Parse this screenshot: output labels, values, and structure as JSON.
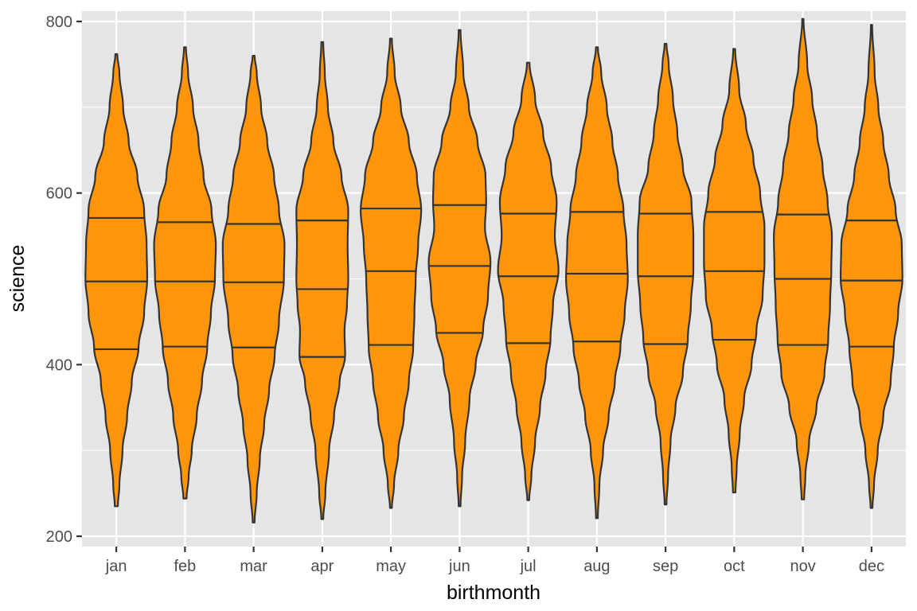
{
  "chart_data": {
    "type": "violin",
    "xlabel": "birthmonth",
    "ylabel": "science",
    "ylim": [
      188,
      812
    ],
    "y_ticks": [
      200,
      400,
      600,
      800
    ],
    "grid": true,
    "fill_color": "#FF950A",
    "outline_color": "#333333",
    "panel_color": "#E5E5E5",
    "categories": [
      "jan",
      "feb",
      "mar",
      "apr",
      "may",
      "jun",
      "jul",
      "aug",
      "sep",
      "oct",
      "nov",
      "dec"
    ],
    "violins": [
      {
        "category": "jan",
        "min": 235,
        "max": 762,
        "q1": 418,
        "median": 497,
        "q3": 571,
        "density": [
          [
            235,
            0.05
          ],
          [
            260,
            0.1
          ],
          [
            300,
            0.2
          ],
          [
            340,
            0.35
          ],
          [
            380,
            0.5
          ],
          [
            420,
            0.72
          ],
          [
            460,
            0.9
          ],
          [
            500,
            1.0
          ],
          [
            540,
            0.98
          ],
          [
            580,
            0.9
          ],
          [
            620,
            0.68
          ],
          [
            660,
            0.4
          ],
          [
            700,
            0.22
          ],
          [
            740,
            0.1
          ],
          [
            762,
            0.03
          ]
        ]
      },
      {
        "category": "feb",
        "min": 244,
        "max": 770,
        "q1": 421,
        "median": 497,
        "q3": 566,
        "density": [
          [
            244,
            0.05
          ],
          [
            270,
            0.12
          ],
          [
            300,
            0.22
          ],
          [
            340,
            0.38
          ],
          [
            380,
            0.55
          ],
          [
            420,
            0.72
          ],
          [
            460,
            0.84
          ],
          [
            500,
            0.97
          ],
          [
            540,
            1.0
          ],
          [
            580,
            0.86
          ],
          [
            620,
            0.6
          ],
          [
            660,
            0.44
          ],
          [
            700,
            0.26
          ],
          [
            740,
            0.1
          ],
          [
            770,
            0.03
          ]
        ]
      },
      {
        "category": "mar",
        "min": 216,
        "max": 760,
        "q1": 420,
        "median": 496,
        "q3": 564,
        "density": [
          [
            216,
            0.03
          ],
          [
            250,
            0.1
          ],
          [
            290,
            0.2
          ],
          [
            330,
            0.34
          ],
          [
            370,
            0.5
          ],
          [
            410,
            0.68
          ],
          [
            450,
            0.82
          ],
          [
            500,
            0.98
          ],
          [
            540,
            1.0
          ],
          [
            580,
            0.82
          ],
          [
            620,
            0.66
          ],
          [
            660,
            0.44
          ],
          [
            700,
            0.24
          ],
          [
            740,
            0.1
          ],
          [
            760,
            0.03
          ]
        ]
      },
      {
        "category": "apr",
        "min": 220,
        "max": 776,
        "q1": 409,
        "median": 488,
        "q3": 568,
        "density": [
          [
            220,
            0.03
          ],
          [
            250,
            0.1
          ],
          [
            300,
            0.22
          ],
          [
            340,
            0.38
          ],
          [
            380,
            0.56
          ],
          [
            410,
            0.74
          ],
          [
            440,
            0.72
          ],
          [
            470,
            0.8
          ],
          [
            500,
            0.84
          ],
          [
            540,
            0.82
          ],
          [
            580,
            0.84
          ],
          [
            620,
            0.62
          ],
          [
            660,
            0.36
          ],
          [
            700,
            0.18
          ],
          [
            740,
            0.08
          ],
          [
            776,
            0.03
          ]
        ]
      },
      {
        "category": "may",
        "min": 233,
        "max": 780,
        "q1": 423,
        "median": 509,
        "q3": 582,
        "density": [
          [
            233,
            0.03
          ],
          [
            260,
            0.1
          ],
          [
            300,
            0.24
          ],
          [
            340,
            0.42
          ],
          [
            380,
            0.58
          ],
          [
            420,
            0.72
          ],
          [
            460,
            0.76
          ],
          [
            500,
            0.8
          ],
          [
            540,
            0.88
          ],
          [
            580,
            0.98
          ],
          [
            620,
            0.84
          ],
          [
            660,
            0.58
          ],
          [
            700,
            0.32
          ],
          [
            740,
            0.12
          ],
          [
            780,
            0.03
          ]
        ]
      },
      {
        "category": "jun",
        "min": 235,
        "max": 790,
        "q1": 437,
        "median": 515,
        "q3": 586,
        "density": [
          [
            235,
            0.03
          ],
          [
            270,
            0.08
          ],
          [
            310,
            0.18
          ],
          [
            360,
            0.32
          ],
          [
            400,
            0.52
          ],
          [
            440,
            0.76
          ],
          [
            480,
            0.92
          ],
          [
            520,
            1.0
          ],
          [
            560,
            0.82
          ],
          [
            590,
            0.86
          ],
          [
            620,
            0.84
          ],
          [
            660,
            0.58
          ],
          [
            700,
            0.3
          ],
          [
            740,
            0.12
          ],
          [
            790,
            0.03
          ]
        ]
      },
      {
        "category": "jul",
        "min": 242,
        "max": 752,
        "q1": 425,
        "median": 503,
        "q3": 576,
        "density": [
          [
            242,
            0.03
          ],
          [
            270,
            0.1
          ],
          [
            310,
            0.22
          ],
          [
            350,
            0.38
          ],
          [
            390,
            0.56
          ],
          [
            430,
            0.72
          ],
          [
            470,
            0.8
          ],
          [
            510,
            0.98
          ],
          [
            550,
            0.86
          ],
          [
            590,
            0.92
          ],
          [
            630,
            0.74
          ],
          [
            670,
            0.48
          ],
          [
            710,
            0.22
          ],
          [
            752,
            0.04
          ]
        ]
      },
      {
        "category": "aug",
        "min": 221,
        "max": 770,
        "q1": 427,
        "median": 506,
        "q3": 578,
        "density": [
          [
            221,
            0.03
          ],
          [
            260,
            0.08
          ],
          [
            300,
            0.2
          ],
          [
            340,
            0.38
          ],
          [
            380,
            0.58
          ],
          [
            420,
            0.76
          ],
          [
            460,
            0.9
          ],
          [
            500,
            1.0
          ],
          [
            540,
            0.96
          ],
          [
            580,
            0.86
          ],
          [
            620,
            0.68
          ],
          [
            660,
            0.5
          ],
          [
            700,
            0.32
          ],
          [
            740,
            0.14
          ],
          [
            770,
            0.03
          ]
        ]
      },
      {
        "category": "sep",
        "min": 237,
        "max": 774,
        "q1": 424,
        "median": 503,
        "q3": 576,
        "density": [
          [
            237,
            0.03
          ],
          [
            270,
            0.08
          ],
          [
            310,
            0.16
          ],
          [
            350,
            0.32
          ],
          [
            390,
            0.56
          ],
          [
            430,
            0.72
          ],
          [
            470,
            0.82
          ],
          [
            510,
            0.9
          ],
          [
            550,
            0.9
          ],
          [
            590,
            0.84
          ],
          [
            630,
            0.56
          ],
          [
            670,
            0.38
          ],
          [
            710,
            0.24
          ],
          [
            750,
            0.1
          ],
          [
            774,
            0.03
          ]
        ]
      },
      {
        "category": "oct",
        "min": 251,
        "max": 768,
        "q1": 429,
        "median": 509,
        "q3": 578,
        "density": [
          [
            251,
            0.04
          ],
          [
            280,
            0.08
          ],
          [
            320,
            0.18
          ],
          [
            360,
            0.32
          ],
          [
            400,
            0.56
          ],
          [
            440,
            0.72
          ],
          [
            480,
            0.92
          ],
          [
            520,
            0.98
          ],
          [
            560,
            0.98
          ],
          [
            600,
            0.84
          ],
          [
            640,
            0.62
          ],
          [
            680,
            0.38
          ],
          [
            720,
            0.16
          ],
          [
            768,
            0.03
          ]
        ]
      },
      {
        "category": "nov",
        "min": 243,
        "max": 803,
        "q1": 423,
        "median": 500,
        "q3": 575,
        "density": [
          [
            243,
            0.04
          ],
          [
            270,
            0.08
          ],
          [
            310,
            0.2
          ],
          [
            350,
            0.44
          ],
          [
            390,
            0.7
          ],
          [
            430,
            0.82
          ],
          [
            470,
            0.88
          ],
          [
            510,
            0.92
          ],
          [
            550,
            0.94
          ],
          [
            590,
            0.8
          ],
          [
            630,
            0.64
          ],
          [
            670,
            0.46
          ],
          [
            710,
            0.3
          ],
          [
            750,
            0.14
          ],
          [
            803,
            0.02
          ]
        ]
      },
      {
        "category": "dec",
        "min": 233,
        "max": 796,
        "q1": 421,
        "median": 498,
        "q3": 568,
        "density": [
          [
            233,
            0.03
          ],
          [
            260,
            0.08
          ],
          [
            300,
            0.2
          ],
          [
            340,
            0.38
          ],
          [
            380,
            0.62
          ],
          [
            420,
            0.72
          ],
          [
            460,
            0.86
          ],
          [
            500,
            1.0
          ],
          [
            540,
            0.98
          ],
          [
            580,
            0.78
          ],
          [
            620,
            0.56
          ],
          [
            660,
            0.38
          ],
          [
            700,
            0.22
          ],
          [
            740,
            0.1
          ],
          [
            796,
            0.02
          ]
        ]
      }
    ]
  }
}
